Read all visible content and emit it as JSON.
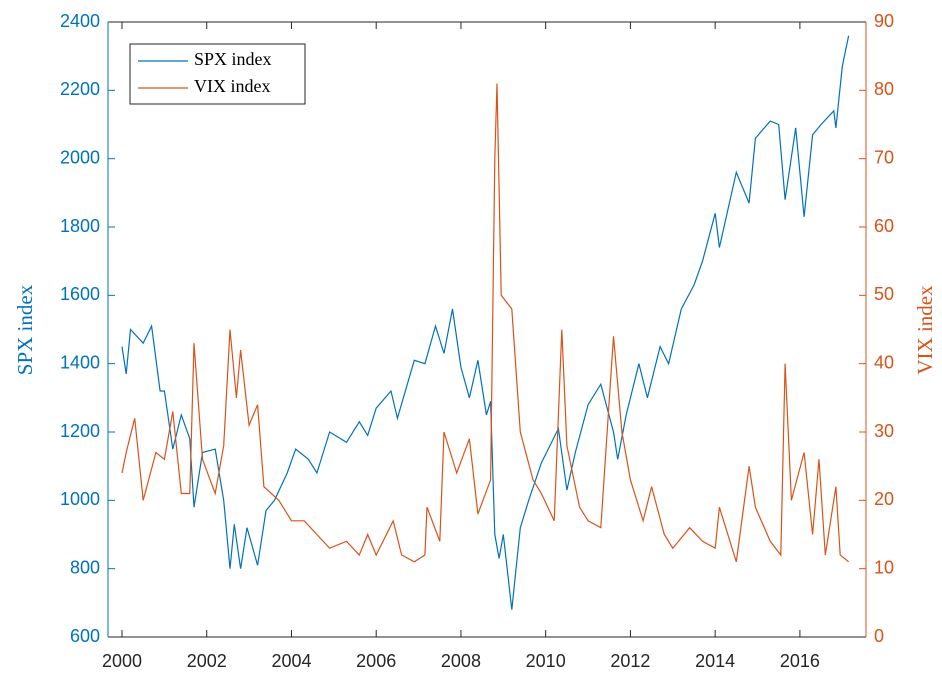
{
  "chart_data": {
    "type": "line",
    "y_label": "SPX index",
    "y2_label": "VIX index",
    "xlim": [
      1999.67,
      2017.56
    ],
    "xticks": [
      2000,
      2002,
      2004,
      2006,
      2008,
      2010,
      2012,
      2014,
      2016
    ],
    "ylim": [
      600,
      2400
    ],
    "yticks": [
      600,
      800,
      1000,
      1200,
      1400,
      1600,
      1800,
      2000,
      2200,
      2400
    ],
    "y2lim": [
      0,
      90
    ],
    "y2ticks": [
      0,
      10,
      20,
      30,
      40,
      50,
      60,
      70,
      80,
      90
    ],
    "legend": "upper left",
    "series": [
      {
        "name": "SPX index",
        "color": "#0072BD",
        "axis": "y",
        "x": [
          2000.0,
          2000.1,
          2000.2,
          2000.5,
          2000.7,
          2000.9,
          2001.0,
          2001.2,
          2001.4,
          2001.6,
          2001.7,
          2001.9,
          2002.2,
          2002.4,
          2002.55,
          2002.65,
          2002.8,
          2002.95,
          2003.2,
          2003.4,
          2003.6,
          2003.9,
          2004.1,
          2004.4,
          2004.6,
          2004.9,
          2005.3,
          2005.6,
          2005.8,
          2006.0,
          2006.35,
          2006.5,
          2006.9,
          2007.15,
          2007.4,
          2007.6,
          2007.8,
          2008.0,
          2008.2,
          2008.4,
          2008.6,
          2008.7,
          2008.8,
          2008.9,
          2009.0,
          2009.2,
          2009.4,
          2009.6,
          2009.9,
          2010.3,
          2010.5,
          2010.7,
          2011.0,
          2011.3,
          2011.6,
          2011.7,
          2011.9,
          2012.2,
          2012.4,
          2012.7,
          2012.9,
          2013.2,
          2013.5,
          2013.7,
          2014.0,
          2014.1,
          2014.5,
          2014.8,
          2014.95,
          2015.3,
          2015.5,
          2015.65,
          2015.9,
          2016.1,
          2016.3,
          2016.5,
          2016.8,
          2016.85,
          2017.0,
          2017.15
        ],
        "values": [
          1450,
          1370,
          1500,
          1460,
          1510,
          1320,
          1320,
          1150,
          1250,
          1180,
          980,
          1140,
          1150,
          1000,
          800,
          930,
          800,
          920,
          810,
          970,
          1000,
          1080,
          1150,
          1120,
          1080,
          1200,
          1170,
          1230,
          1190,
          1270,
          1320,
          1240,
          1410,
          1400,
          1510,
          1430,
          1560,
          1390,
          1300,
          1410,
          1250,
          1290,
          900,
          830,
          900,
          680,
          920,
          1000,
          1110,
          1210,
          1030,
          1140,
          1280,
          1340,
          1200,
          1120,
          1250,
          1400,
          1300,
          1450,
          1400,
          1560,
          1630,
          1700,
          1840,
          1740,
          1960,
          1870,
          2060,
          2110,
          2100,
          1880,
          2090,
          1830,
          2070,
          2100,
          2140,
          2090,
          2270,
          2360
        ]
      },
      {
        "name": "VIX index",
        "color": "#D95319",
        "axis": "y2",
        "x": [
          2000.0,
          2000.1,
          2000.3,
          2000.5,
          2000.8,
          2001.0,
          2001.2,
          2001.4,
          2001.6,
          2001.7,
          2001.9,
          2002.2,
          2002.4,
          2002.55,
          2002.7,
          2002.8,
          2003.0,
          2003.2,
          2003.35,
          2003.7,
          2004.0,
          2004.3,
          2004.6,
          2004.9,
          2005.3,
          2005.6,
          2005.8,
          2006.0,
          2006.4,
          2006.6,
          2006.9,
          2007.15,
          2007.2,
          2007.5,
          2007.6,
          2007.9,
          2008.2,
          2008.4,
          2008.7,
          2008.8,
          2008.85,
          2008.95,
          2009.2,
          2009.4,
          2009.7,
          2009.9,
          2010.2,
          2010.38,
          2010.5,
          2010.8,
          2011.0,
          2011.3,
          2011.6,
          2011.8,
          2012.0,
          2012.3,
          2012.5,
          2012.8,
          2013.0,
          2013.4,
          2013.7,
          2014.0,
          2014.1,
          2014.5,
          2014.8,
          2014.95,
          2015.3,
          2015.55,
          2015.65,
          2015.8,
          2016.1,
          2016.3,
          2016.45,
          2016.6,
          2016.85,
          2016.95,
          2017.15
        ],
        "values": [
          24,
          27,
          32,
          20,
          27,
          26,
          33,
          21,
          21,
          43,
          26,
          21,
          28,
          45,
          35,
          42,
          31,
          34,
          22,
          20,
          17,
          17,
          15,
          13,
          14,
          12,
          15,
          12,
          17,
          12,
          11,
          12,
          19,
          14,
          30,
          24,
          29,
          18,
          23,
          70,
          81,
          50,
          48,
          30,
          23,
          21,
          17,
          45,
          28,
          19,
          17,
          16,
          44,
          30,
          23,
          17,
          22,
          15,
          13,
          16,
          14,
          13,
          19,
          11,
          25,
          19,
          14,
          12,
          40,
          20,
          27,
          15,
          26,
          12,
          22,
          12,
          11
        ]
      }
    ]
  }
}
